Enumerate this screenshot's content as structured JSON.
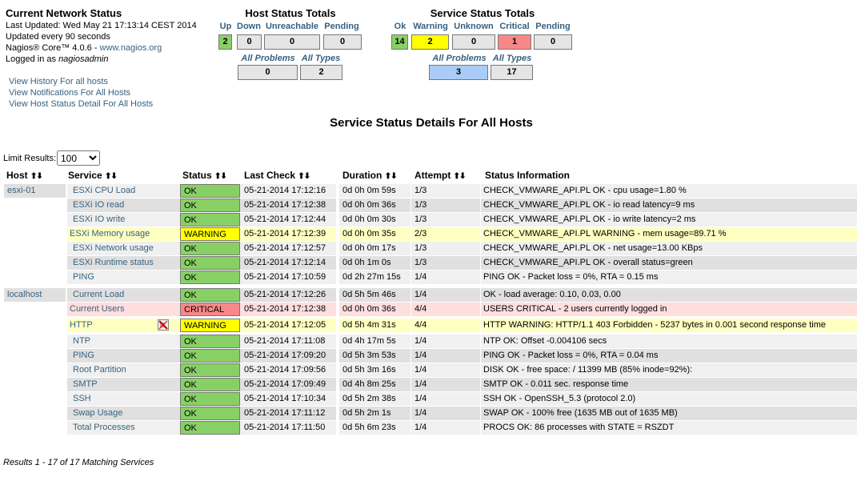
{
  "info": {
    "title": "Current Network Status",
    "last_updated": "Last Updated: Wed May 21 17:13:14 CEST 2014",
    "update_interval": "Updated every 90 seconds",
    "core_prefix": "Nagios® Core™ 4.0.6 - ",
    "core_link": "www.nagios.org",
    "logged_prefix": "Logged in as ",
    "logged_user": "nagiosadmin"
  },
  "nav_links": [
    "View History For all hosts",
    "View Notifications For All Hosts",
    "View Host Status Detail For All Hosts"
  ],
  "host_totals": {
    "title": "Host Status Totals",
    "labels": {
      "up": "Up",
      "down": "Down",
      "unreachable": "Unreachable",
      "pending": "Pending"
    },
    "values": {
      "up": "2",
      "down": "0",
      "unreachable": "0",
      "pending": "0"
    },
    "labels2": {
      "all_problems": "All Problems",
      "all_types": "All Types"
    },
    "values2": {
      "all_problems": "0",
      "all_types": "2"
    }
  },
  "service_totals": {
    "title": "Service Status Totals",
    "labels": {
      "ok": "Ok",
      "warning": "Warning",
      "unknown": "Unknown",
      "critical": "Critical",
      "pending": "Pending"
    },
    "values": {
      "ok": "14",
      "warning": "2",
      "unknown": "0",
      "critical": "1",
      "pending": "0"
    },
    "labels2": {
      "all_problems": "All Problems",
      "all_types": "All Types"
    },
    "values2": {
      "all_problems": "3",
      "all_types": "17"
    }
  },
  "page_title": "Service Status Details For All Hosts",
  "limit": {
    "label": "Limit Results:",
    "value": "100",
    "options": [
      "100"
    ]
  },
  "columns": {
    "host": "Host",
    "service": "Service",
    "status": "Status",
    "last_check": "Last Check",
    "duration": "Duration",
    "attempt": "Attempt",
    "info": "Status Information"
  },
  "sort_arrows": "⬆⬇",
  "rows": [
    {
      "host": "esxi-01",
      "service": "ESXi CPU Load",
      "status": "OK",
      "last_check": "05-21-2014 17:12:16",
      "duration": "0d 0h 0m 59s",
      "attempt": "1/3",
      "info": "CHECK_VMWARE_API.PL OK - cpu usage=1.80 %"
    },
    {
      "host": "",
      "service": "ESXi IO read",
      "status": "OK",
      "last_check": "05-21-2014 17:12:38",
      "duration": "0d 0h 0m 36s",
      "attempt": "1/3",
      "info": "CHECK_VMWARE_API.PL OK - io read latency=9 ms"
    },
    {
      "host": "",
      "service": "ESXi IO write",
      "status": "OK",
      "last_check": "05-21-2014 17:12:44",
      "duration": "0d 0h 0m 30s",
      "attempt": "1/3",
      "info": "CHECK_VMWARE_API.PL OK - io write latency=2 ms"
    },
    {
      "host": "",
      "service": "ESXi Memory usage",
      "status": "WARNING",
      "last_check": "05-21-2014 17:12:39",
      "duration": "0d 0h 0m 35s",
      "attempt": "2/3",
      "info": "CHECK_VMWARE_API.PL WARNING - mem usage=89.71 %"
    },
    {
      "host": "",
      "service": "ESXi Network usage",
      "status": "OK",
      "last_check": "05-21-2014 17:12:57",
      "duration": "0d 0h 0m 17s",
      "attempt": "1/3",
      "info": "CHECK_VMWARE_API.PL OK - net usage=13.00 KBps"
    },
    {
      "host": "",
      "service": "ESXi Runtime status",
      "status": "OK",
      "last_check": "05-21-2014 17:12:14",
      "duration": "0d 0h 1m 0s",
      "attempt": "1/3",
      "info": "CHECK_VMWARE_API.PL OK - overall status=green"
    },
    {
      "host": "",
      "service": "PING",
      "status": "OK",
      "last_check": "05-21-2014 17:10:59",
      "duration": "0d 2h 27m 15s",
      "attempt": "1/4",
      "info": "PING OK - Packet loss = 0%, RTA = 0.15 ms"
    },
    {
      "host": "localhost",
      "service": "Current Load",
      "status": "OK",
      "last_check": "05-21-2014 17:12:26",
      "duration": "0d 5h 5m 46s",
      "attempt": "1/4",
      "info": "OK - load average: 0.10, 0.03, 0.00"
    },
    {
      "host": "",
      "service": "Current Users",
      "status": "CRITICAL",
      "last_check": "05-21-2014 17:12:38",
      "duration": "0d 0h 0m 36s",
      "attempt": "4/4",
      "info": "USERS CRITICAL - 2 users currently logged in"
    },
    {
      "host": "",
      "service": "HTTP",
      "status": "WARNING",
      "last_check": "05-21-2014 17:12:05",
      "duration": "0d 5h 4m 31s",
      "attempt": "4/4",
      "info": "HTTP WARNING: HTTP/1.1 403 Forbidden - 5237 bytes in 0.001 second response time"
    },
    {
      "host": "",
      "service": "NTP",
      "status": "OK",
      "last_check": "05-21-2014 17:11:08",
      "duration": "0d 4h 17m 5s",
      "attempt": "1/4",
      "info": "NTP OK: Offset -0.004106 secs"
    },
    {
      "host": "",
      "service": "PING",
      "status": "OK",
      "last_check": "05-21-2014 17:09:20",
      "duration": "0d 5h 3m 53s",
      "attempt": "1/4",
      "info": "PING OK - Packet loss = 0%, RTA = 0.04 ms"
    },
    {
      "host": "",
      "service": "Root Partition",
      "status": "OK",
      "last_check": "05-21-2014 17:09:56",
      "duration": "0d 5h 3m 16s",
      "attempt": "1/4",
      "info": "DISK OK - free space: / 11399 MB (85% inode=92%):"
    },
    {
      "host": "",
      "service": "SMTP",
      "status": "OK",
      "last_check": "05-21-2014 17:09:49",
      "duration": "0d 4h 8m 25s",
      "attempt": "1/4",
      "info": "SMTP OK - 0.011 sec. response time"
    },
    {
      "host": "",
      "service": "SSH",
      "status": "OK",
      "last_check": "05-21-2014 17:10:34",
      "duration": "0d 5h 2m 38s",
      "attempt": "1/4",
      "info": "SSH OK - OpenSSH_5.3 (protocol 2.0)"
    },
    {
      "host": "",
      "service": "Swap Usage",
      "status": "OK",
      "last_check": "05-21-2014 17:11:12",
      "duration": "0d 5h 2m 1s",
      "attempt": "1/4",
      "info": "SWAP OK - 100% free (1635 MB out of 1635 MB)"
    },
    {
      "host": "",
      "service": "Total Processes",
      "status": "OK",
      "last_check": "05-21-2014 17:11:50",
      "duration": "0d 5h 6m 23s",
      "attempt": "1/4",
      "info": "PROCS OK: 86 processes with STATE = RSZDT"
    }
  ],
  "footer": "Results 1 - 17 of 17 Matching Services",
  "colors": {
    "ok": "#88d066",
    "warning": "#ffff00",
    "critical": "#f88888",
    "link": "#36617f",
    "row_warning": "#feffc1",
    "row_critical": "#ffdede"
  }
}
